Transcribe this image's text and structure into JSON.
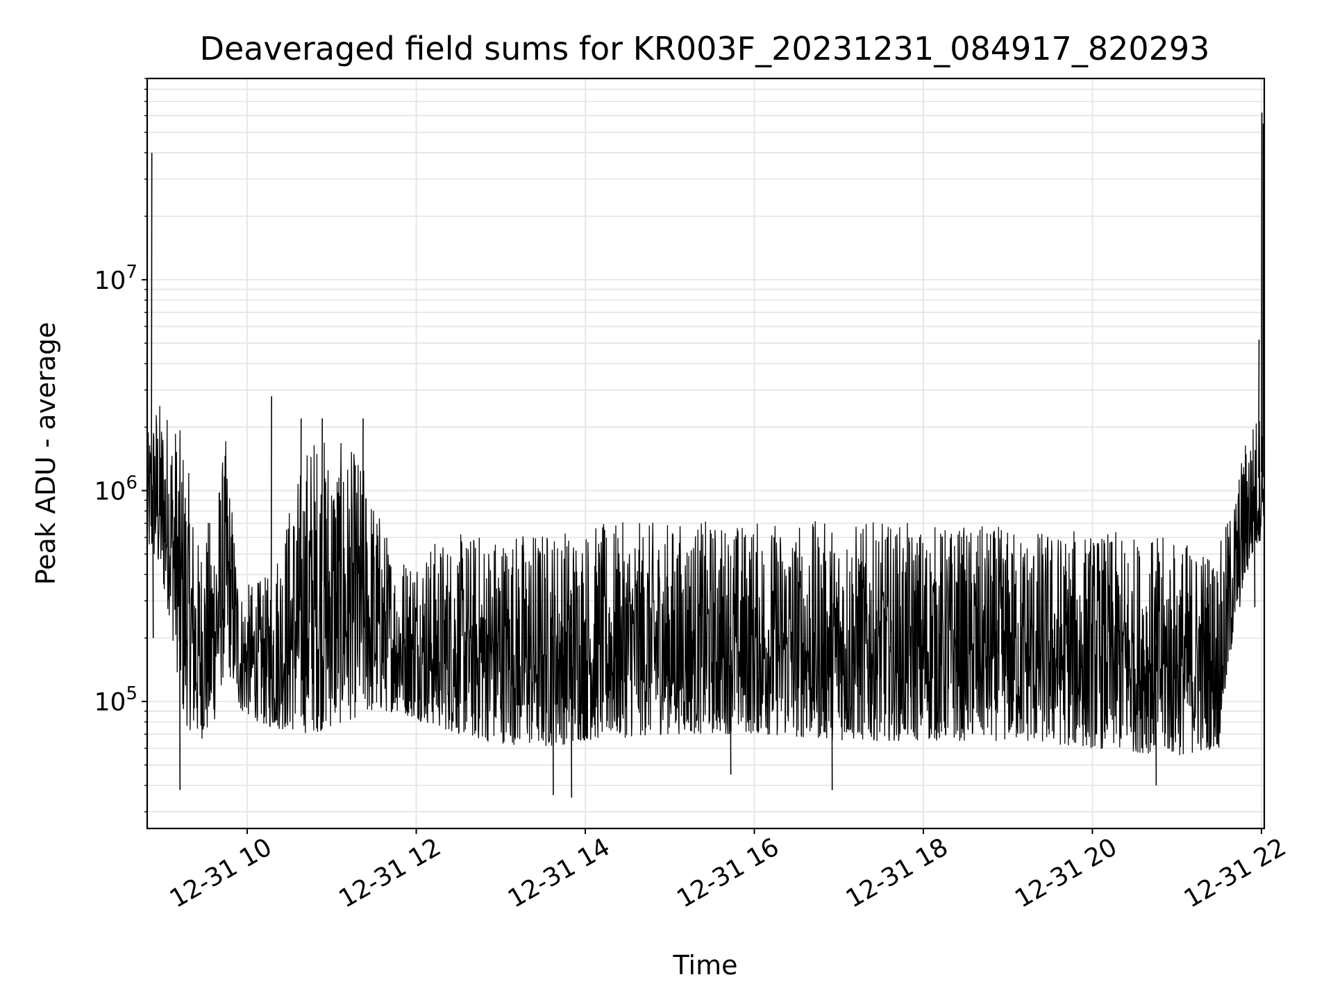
{
  "chart_data": {
    "type": "line",
    "title": "Deaveraged field sums for KR003F_20231231_084917_820293",
    "xlabel": "Time",
    "ylabel": "Peak ADU - average",
    "y_scale": "log",
    "grid": true,
    "legend": "none",
    "line_color": "#000000",
    "grid_color": "#e5e5e5",
    "xlim": [
      "2023-12-31 08:49",
      "2023-12-31 22:02"
    ],
    "ylim": [
      25000,
      90000000
    ],
    "x_ticks": [
      {
        "value": "2023-12-31 10:00",
        "label": "12-31 10"
      },
      {
        "value": "2023-12-31 12:00",
        "label": "12-31 12"
      },
      {
        "value": "2023-12-31 14:00",
        "label": "12-31 14"
      },
      {
        "value": "2023-12-31 16:00",
        "label": "12-31 16"
      },
      {
        "value": "2023-12-31 18:00",
        "label": "12-31 18"
      },
      {
        "value": "2023-12-31 20:00",
        "label": "12-31 20"
      },
      {
        "value": "2023-12-31 22:00",
        "label": "12-31 22"
      }
    ],
    "y_ticks": [
      {
        "value": 100000,
        "base": "10",
        "exp": "5"
      },
      {
        "value": 1000000,
        "base": "10",
        "exp": "6"
      },
      {
        "value": 10000000,
        "base": "10",
        "exp": "7"
      }
    ],
    "envelope": {
      "description_of_series": "Dense noisy time series; per-time lower/upper bounds of the trace",
      "time": [
        "2023-12-31 08:49",
        "2023-12-31 08:55",
        "2023-12-31 09:05",
        "2023-12-31 09:15",
        "2023-12-31 09:25",
        "2023-12-31 09:35",
        "2023-12-31 09:45",
        "2023-12-31 09:55",
        "2023-12-31 10:15",
        "2023-12-31 10:45",
        "2023-12-31 11:00",
        "2023-12-31 11:20",
        "2023-12-31 11:45",
        "2023-12-31 12:15",
        "2023-12-31 12:45",
        "2023-12-31 13:30",
        "2023-12-31 14:00",
        "2023-12-31 15:00",
        "2023-12-31 16:00",
        "2023-12-31 17:00",
        "2023-12-31 18:00",
        "2023-12-31 19:00",
        "2023-12-31 20:00",
        "2023-12-31 21:00",
        "2023-12-31 21:30",
        "2023-12-31 21:40",
        "2023-12-31 21:50",
        "2023-12-31 22:00",
        "2023-12-31 22:02"
      ],
      "low": [
        500000,
        450000,
        250000,
        80000,
        65000,
        70000,
        150000,
        90000,
        75000,
        70000,
        75000,
        85000,
        90000,
        75000,
        65000,
        60000,
        65000,
        70000,
        70000,
        65000,
        65000,
        65000,
        60000,
        55000,
        60000,
        200000,
        400000,
        600000,
        800000
      ],
      "high": [
        1800000,
        2800000,
        2500000,
        1800000,
        600000,
        800000,
        1800000,
        350000,
        400000,
        2000000,
        1800000,
        1500000,
        500000,
        600000,
        650000,
        680000,
        700000,
        720000,
        730000,
        720000,
        700000,
        680000,
        650000,
        600000,
        550000,
        900000,
        2000000,
        2500000,
        1500000
      ]
    },
    "spikes": [
      {
        "time": "2023-12-31 08:52",
        "value": 40000000
      },
      {
        "time": "2023-12-31 08:53",
        "value": 200000
      },
      {
        "time": "2023-12-31 09:12",
        "value": 38000
      },
      {
        "time": "2023-12-31 10:17",
        "value": 2800000
      },
      {
        "time": "2023-12-31 10:38",
        "value": 2200000
      },
      {
        "time": "2023-12-31 10:53",
        "value": 2200000
      },
      {
        "time": "2023-12-31 11:22",
        "value": 2200000
      },
      {
        "time": "2023-12-31 13:37",
        "value": 36000
      },
      {
        "time": "2023-12-31 13:50",
        "value": 35000
      },
      {
        "time": "2023-12-31 15:43",
        "value": 45000
      },
      {
        "time": "2023-12-31 16:55",
        "value": 38000
      },
      {
        "time": "2023-12-31 20:45",
        "value": 40000
      },
      {
        "time": "2023-12-31 21:55",
        "value": 280000
      },
      {
        "time": "2023-12-31 21:58",
        "value": 5200000
      },
      {
        "time": "2023-12-31 22:00",
        "value": 62000000
      },
      {
        "time": "2023-12-31 22:01",
        "value": 55000000
      }
    ]
  }
}
